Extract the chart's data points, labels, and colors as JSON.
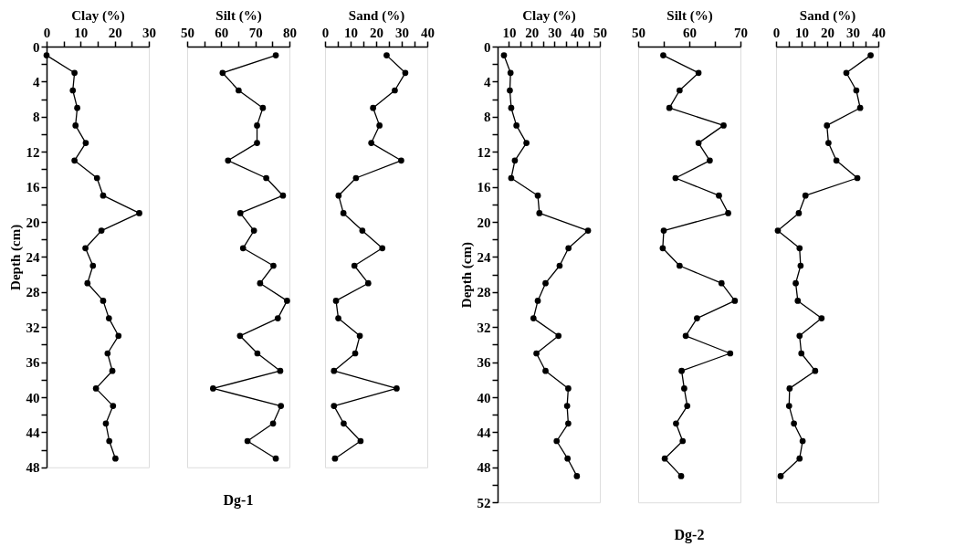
{
  "chart_data": [
    {
      "type": "line",
      "xlabel": "Clay (%)",
      "ylabel": "Depth (cm)",
      "xlim": [
        0,
        30
      ],
      "xticks": [
        0,
        {
          "value": 5,
          "label": null
        },
        10,
        {
          "value": 15,
          "label": null
        },
        20,
        {
          "value": 25,
          "label": null
        },
        30
      ],
      "ylim": [
        48,
        0
      ],
      "yticks": [
        0,
        {
          "value": 2,
          "label": null
        },
        4,
        {
          "value": 6,
          "label": null
        },
        8,
        {
          "value": 10,
          "label": null
        },
        12,
        {
          "value": 14,
          "label": null
        },
        16,
        {
          "value": 18,
          "label": null
        },
        20,
        {
          "value": 22,
          "label": null
        },
        24,
        {
          "value": 26,
          "label": null
        },
        28,
        {
          "value": 30,
          "label": null
        },
        32,
        {
          "value": 34,
          "label": null
        },
        36,
        {
          "value": 38,
          "label": null
        },
        40,
        {
          "value": 42,
          "label": null
        },
        44,
        {
          "value": 46,
          "label": null
        },
        48
      ],
      "marker": "circle",
      "series": [
        {
          "color": "#000000",
          "x": [
            0,
            8.2,
            7.7,
            9.0,
            8.5,
            11.5,
            8.2,
            14.8,
            16.6,
            27.2,
            16.1,
            11.4,
            13.6,
            12.0,
            16.6,
            18.3,
            21.1,
            17.9,
            19.3,
            14.5,
            19.5,
            17.4,
            18.4,
            20.2
          ],
          "values": [
            1,
            3,
            5,
            7,
            9,
            11,
            13,
            15,
            17,
            19,
            21,
            23,
            25,
            27,
            29,
            31,
            33,
            35,
            37,
            39,
            41,
            43,
            45,
            47
          ]
        }
      ]
    },
    {
      "type": "line",
      "xlabel": "Silt (%)",
      "xlim": [
        50,
        80
      ],
      "xticks": [
        50,
        {
          "value": 55,
          "label": null
        },
        60,
        {
          "value": 65,
          "label": null
        },
        70,
        {
          "value": 75,
          "label": null
        },
        80
      ],
      "ylim": [
        48,
        0
      ],
      "tick_labels": "x",
      "marker": "circle",
      "annotations": [
        "Dg-1"
      ],
      "series": [
        {
          "color": "#000000",
          "x": [
            76.0,
            60.4,
            65.1,
            72.2,
            70.5,
            70.5,
            62.0,
            73.2,
            78.1,
            65.6,
            69.6,
            66.4,
            75.3,
            71.4,
            79.3,
            76.6,
            65.5,
            70.6,
            77.3,
            57.6,
            77.5,
            75.2,
            67.7,
            76.0
          ],
          "values": [
            1,
            3,
            5,
            7,
            9,
            11,
            13,
            15,
            17,
            19,
            21,
            23,
            25,
            27,
            29,
            31,
            33,
            35,
            37,
            39,
            41,
            43,
            45,
            47
          ]
        }
      ]
    },
    {
      "type": "line",
      "xlabel": "Sand (%)",
      "xlim": [
        0,
        40
      ],
      "xticks": [
        0,
        {
          "value": 5,
          "label": null
        },
        10,
        {
          "value": 15,
          "label": null
        },
        20,
        {
          "value": 25,
          "label": null
        },
        30,
        {
          "value": 35,
          "label": null
        },
        40
      ],
      "ylim": [
        48,
        0
      ],
      "tick_labels": "x",
      "marker": "circle",
      "series": [
        {
          "color": "#000000",
          "x": [
            24.1,
            31.4,
            27.3,
            18.8,
            21.3,
            18.1,
            29.8,
            12.1,
            5.3,
            7.2,
            14.6,
            22.4,
            11.5,
            16.9,
            4.3,
            5.2,
            13.6,
            11.8,
            3.5,
            28.0,
            3.5,
            7.3,
            13.9,
            3.9
          ],
          "values": [
            1,
            3,
            5,
            7,
            9,
            11,
            13,
            15,
            17,
            19,
            21,
            23,
            25,
            27,
            29,
            31,
            33,
            35,
            37,
            39,
            41,
            43,
            45,
            47
          ]
        }
      ]
    },
    {
      "type": "line",
      "xlabel": "Clay (%)",
      "ylabel": "Depth (cm)",
      "xlim": [
        5,
        50
      ],
      "xticks": [
        10,
        {
          "value": 15,
          "label": null
        },
        20,
        {
          "value": 25,
          "label": null
        },
        30,
        {
          "value": 35,
          "label": null
        },
        40,
        {
          "value": 45,
          "label": null
        },
        50
      ],
      "ylim": [
        52,
        0
      ],
      "yticks": [
        0,
        {
          "value": 2,
          "label": null
        },
        4,
        {
          "value": 6,
          "label": null
        },
        8,
        {
          "value": 10,
          "label": null
        },
        12,
        {
          "value": 14,
          "label": null
        },
        16,
        {
          "value": 18,
          "label": null
        },
        20,
        {
          "value": 22,
          "label": null
        },
        24,
        {
          "value": 26,
          "label": null
        },
        28,
        {
          "value": 30,
          "label": null
        },
        32,
        {
          "value": 34,
          "label": null
        },
        36,
        {
          "value": 38,
          "label": null
        },
        40,
        {
          "value": 42,
          "label": null
        },
        44,
        {
          "value": 46,
          "label": null
        },
        48,
        {
          "value": 50,
          "label": null
        },
        52
      ],
      "marker": "circle",
      "series": [
        {
          "color": "#000000",
          "x": [
            7.8,
            10.7,
            10.4,
            11.0,
            13.3,
            17.7,
            12.6,
            11.0,
            22.7,
            23.4,
            44.8,
            36.2,
            32.3,
            26.1,
            22.7,
            20.8,
            31.8,
            22.1,
            26.1,
            36.1,
            35.6,
            36.1,
            31.0,
            35.8,
            39.9
          ],
          "values": [
            1,
            3,
            5,
            7,
            9,
            11,
            13,
            15,
            17,
            19,
            21,
            23,
            25,
            27,
            29,
            31,
            33,
            35,
            37,
            39,
            41,
            43,
            45,
            47,
            49
          ]
        }
      ]
    },
    {
      "type": "line",
      "xlabel": "Silt (%)",
      "xlim": [
        50,
        70
      ],
      "xticks": [
        50,
        {
          "value": 55,
          "label": null
        },
        60,
        {
          "value": 65,
          "label": null
        },
        70
      ],
      "ylim": [
        52,
        0
      ],
      "tick_labels": "x",
      "marker": "circle",
      "annotations": [
        "Dg-2"
      ],
      "series": [
        {
          "color": "#000000",
          "x": [
            54.9,
            61.8,
            58.1,
            56.1,
            66.7,
            61.8,
            64.0,
            57.3,
            65.8,
            67.6,
            55.0,
            54.8,
            58.1,
            66.3,
            68.9,
            61.5,
            59.3,
            68.0,
            58.5,
            59.0,
            59.6,
            57.4,
            58.7,
            55.2,
            58.4
          ],
          "values": [
            1,
            3,
            5,
            7,
            9,
            11,
            13,
            15,
            17,
            19,
            21,
            23,
            25,
            27,
            29,
            31,
            33,
            35,
            37,
            39,
            41,
            43,
            45,
            47,
            49
          ]
        }
      ]
    },
    {
      "type": "line",
      "xlabel": "Sand (%)",
      "xlim": [
        0,
        40
      ],
      "xticks": [
        0,
        {
          "value": 5,
          "label": null
        },
        10,
        {
          "value": 15,
          "label": null
        },
        20,
        {
          "value": 25,
          "label": null
        },
        30,
        {
          "value": 35,
          "label": null
        },
        40
      ],
      "ylim": [
        52,
        0
      ],
      "tick_labels": "x",
      "marker": "circle",
      "series": [
        {
          "color": "#000000",
          "x": [
            37.0,
            27.5,
            31.4,
            32.9,
            19.9,
            20.5,
            23.6,
            31.8,
            11.5,
            8.9,
            0.7,
            9.2,
            9.6,
            7.7,
            8.5,
            17.8,
            9.2,
            9.9,
            15.3,
            5.3,
            5.1,
            7.0,
            10.4,
            9.2,
            1.8
          ],
          "values": [
            1,
            3,
            5,
            7,
            9,
            11,
            13,
            15,
            17,
            19,
            21,
            23,
            25,
            27,
            29,
            31,
            33,
            35,
            37,
            39,
            41,
            43,
            45,
            47,
            49
          ]
        }
      ]
    }
  ]
}
